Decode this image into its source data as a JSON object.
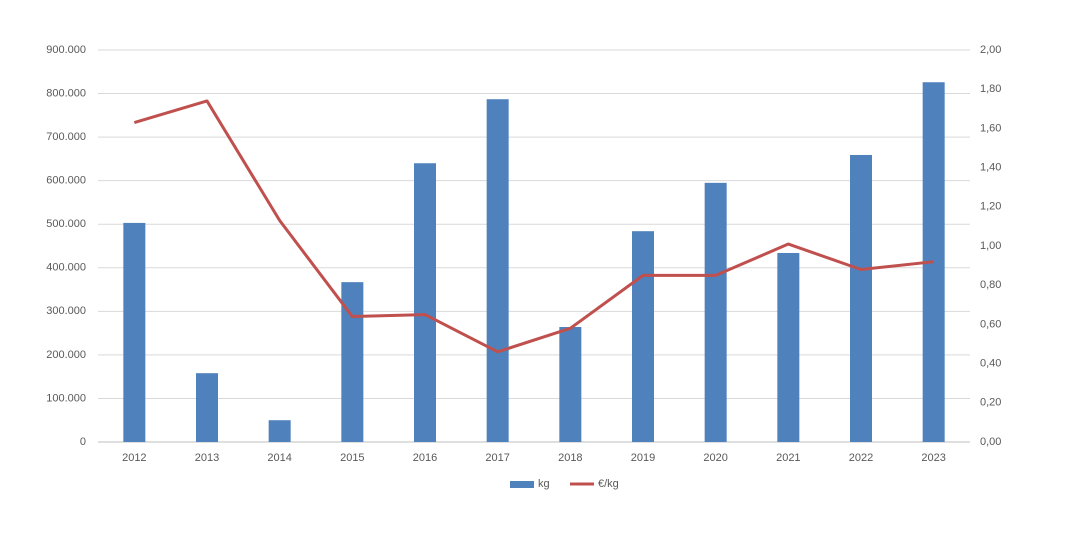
{
  "chart_data": {
    "type": "bar",
    "categories": [
      "2012",
      "2013",
      "2014",
      "2015",
      "2016",
      "2017",
      "2018",
      "2019",
      "2020",
      "2021",
      "2022",
      "2023"
    ],
    "series": [
      {
        "name": "kg",
        "type": "bar",
        "color": "#4f81bd",
        "values": [
          503000,
          158000,
          50000,
          367000,
          640000,
          787000,
          264000,
          484000,
          595000,
          434000,
          659000,
          826000
        ]
      },
      {
        "name": "€/kg",
        "type": "line",
        "axis": "y2",
        "color": "#c0504d",
        "values": [
          1.63,
          1.74,
          1.13,
          0.64,
          0.65,
          0.46,
          0.58,
          0.85,
          0.85,
          1.01,
          0.88,
          0.92
        ]
      }
    ],
    "ylim": [
      0,
      900000
    ],
    "yticks": [
      0,
      {
        "value": 100000,
        "label": "100.000"
      },
      {
        "value": 200000,
        "label": "200.000"
      },
      {
        "value": 300000,
        "label": "300.000"
      },
      {
        "value": 400000,
        "label": "400.000"
      },
      {
        "value": 500000,
        "label": "500.000"
      },
      {
        "value": 600000,
        "label": "600.000"
      },
      {
        "value": 700000,
        "label": "700.000"
      },
      {
        "value": 800000,
        "label": "800.000"
      },
      {
        "value": 900000,
        "label": "900.000"
      }
    ],
    "y2lim": [
      0,
      2
    ],
    "y2ticks": [
      {
        "value": 0,
        "label": "0,00"
      },
      {
        "value": 0.2,
        "label": "0,20"
      },
      {
        "value": 0.4,
        "label": "0,40"
      },
      {
        "value": 0.6,
        "label": "0,60"
      },
      {
        "value": 0.8,
        "label": "0,80"
      },
      {
        "value": 1,
        "label": "1,00"
      },
      {
        "value": 1.2,
        "label": "1,20"
      },
      {
        "value": 1.4,
        "label": "1,40"
      },
      {
        "value": 1.6,
        "label": "1,60"
      },
      {
        "value": 1.8,
        "label": "1,80"
      },
      {
        "value": 2,
        "label": "2,00"
      }
    ],
    "grid": true,
    "legend": "bottom"
  }
}
